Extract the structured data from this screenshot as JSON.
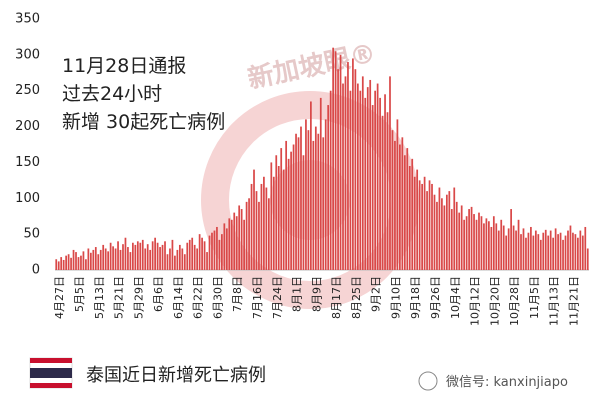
{
  "chart_data": {
    "type": "bar",
    "annotation": [
      "11月28日通报",
      "过去24小时",
      "新增 30起死亡病例"
    ],
    "watermark": "新加坡眼®",
    "caption": "泰国近日新增死亡病例",
    "source": "微信号: kanxinjiapo",
    "color": "#d94848",
    "ylim": [
      0,
      350
    ],
    "yticks": [
      0,
      50,
      100,
      150,
      200,
      250,
      300,
      350
    ],
    "grid": false,
    "categories": [
      "4月27日",
      null,
      null,
      null,
      null,
      null,
      null,
      null,
      "5月5日",
      null,
      null,
      null,
      null,
      null,
      null,
      null,
      "5月13日",
      null,
      null,
      null,
      null,
      null,
      null,
      null,
      "5月21日",
      null,
      null,
      null,
      null,
      null,
      null,
      null,
      "5月29日",
      null,
      null,
      null,
      null,
      null,
      null,
      null,
      "6月6日",
      null,
      null,
      null,
      null,
      null,
      null,
      null,
      "6月14日",
      null,
      null,
      null,
      null,
      null,
      null,
      null,
      "6月22日",
      null,
      null,
      null,
      null,
      null,
      null,
      null,
      "6月30日",
      null,
      null,
      null,
      null,
      null,
      null,
      null,
      "7月8日",
      null,
      null,
      null,
      null,
      null,
      null,
      null,
      "7月16日",
      null,
      null,
      null,
      null,
      null,
      null,
      null,
      "7月24日",
      null,
      null,
      null,
      null,
      null,
      null,
      null,
      "8月1日",
      null,
      null,
      null,
      null,
      null,
      null,
      null,
      "8月9日",
      null,
      null,
      null,
      null,
      null,
      null,
      null,
      "8月17日",
      null,
      null,
      null,
      null,
      null,
      null,
      null,
      "8月25日",
      null,
      null,
      null,
      null,
      null,
      null,
      null,
      "9月2日",
      null,
      null,
      null,
      null,
      null,
      null,
      null,
      "9月10日",
      null,
      null,
      null,
      null,
      null,
      null,
      null,
      "9月18日",
      null,
      null,
      null,
      null,
      null,
      null,
      null,
      "9月26日",
      null,
      null,
      null,
      null,
      null,
      null,
      null,
      "10月4日",
      null,
      null,
      null,
      null,
      null,
      null,
      null,
      "10月12日",
      null,
      null,
      null,
      null,
      null,
      null,
      null,
      "10月20日",
      null,
      null,
      null,
      null,
      null,
      null,
      null,
      "10月28日",
      null,
      null,
      null,
      null,
      null,
      null,
      null,
      "11月5日",
      null,
      null,
      null,
      null,
      null,
      null,
      null,
      "11月13日",
      null,
      null,
      null,
      null,
      null,
      null,
      null,
      "11月21日",
      null,
      null,
      null,
      null,
      null,
      null,
      null
    ],
    "values": [
      15,
      12,
      18,
      14,
      20,
      22,
      17,
      28,
      25,
      18,
      20,
      26,
      15,
      30,
      24,
      28,
      32,
      22,
      28,
      35,
      30,
      26,
      38,
      33,
      30,
      40,
      28,
      36,
      45,
      32,
      25,
      38,
      35,
      40,
      38,
      42,
      30,
      36,
      28,
      40,
      45,
      38,
      32,
      35,
      40,
      22,
      30,
      42,
      20,
      28,
      35,
      30,
      22,
      38,
      42,
      45,
      35,
      30,
      50,
      45,
      40,
      25,
      48,
      52,
      55,
      60,
      42,
      50,
      65,
      58,
      72,
      70,
      80,
      75,
      90,
      85,
      70,
      95,
      100,
      120,
      140,
      110,
      95,
      120,
      130,
      115,
      100,
      150,
      130,
      160,
      145,
      170,
      140,
      180,
      155,
      165,
      175,
      190,
      185,
      200,
      160,
      210,
      195,
      235,
      180,
      200,
      190,
      240,
      185,
      210,
      230,
      250,
      310,
      305,
      280,
      300,
      260,
      270,
      290,
      250,
      295,
      280,
      260,
      250,
      270,
      240,
      255,
      265,
      230,
      250,
      260,
      240,
      215,
      245,
      220,
      270,
      195,
      180,
      210,
      175,
      185,
      160,
      170,
      145,
      155,
      130,
      140,
      125,
      120,
      130,
      110,
      125,
      120,
      105,
      95,
      115,
      100,
      90,
      105,
      110,
      85,
      115,
      95,
      80,
      90,
      70,
      75,
      85,
      88,
      78,
      70,
      80,
      75,
      65,
      72,
      68,
      60,
      75,
      65,
      55,
      70,
      62,
      48,
      58,
      85,
      62,
      55,
      70,
      50,
      58,
      45,
      52,
      60,
      48,
      55,
      50,
      42,
      52,
      56,
      48,
      55,
      45,
      58,
      50,
      52,
      42,
      48,
      55,
      62,
      52,
      50,
      45,
      55,
      48,
      60,
      30
    ]
  }
}
